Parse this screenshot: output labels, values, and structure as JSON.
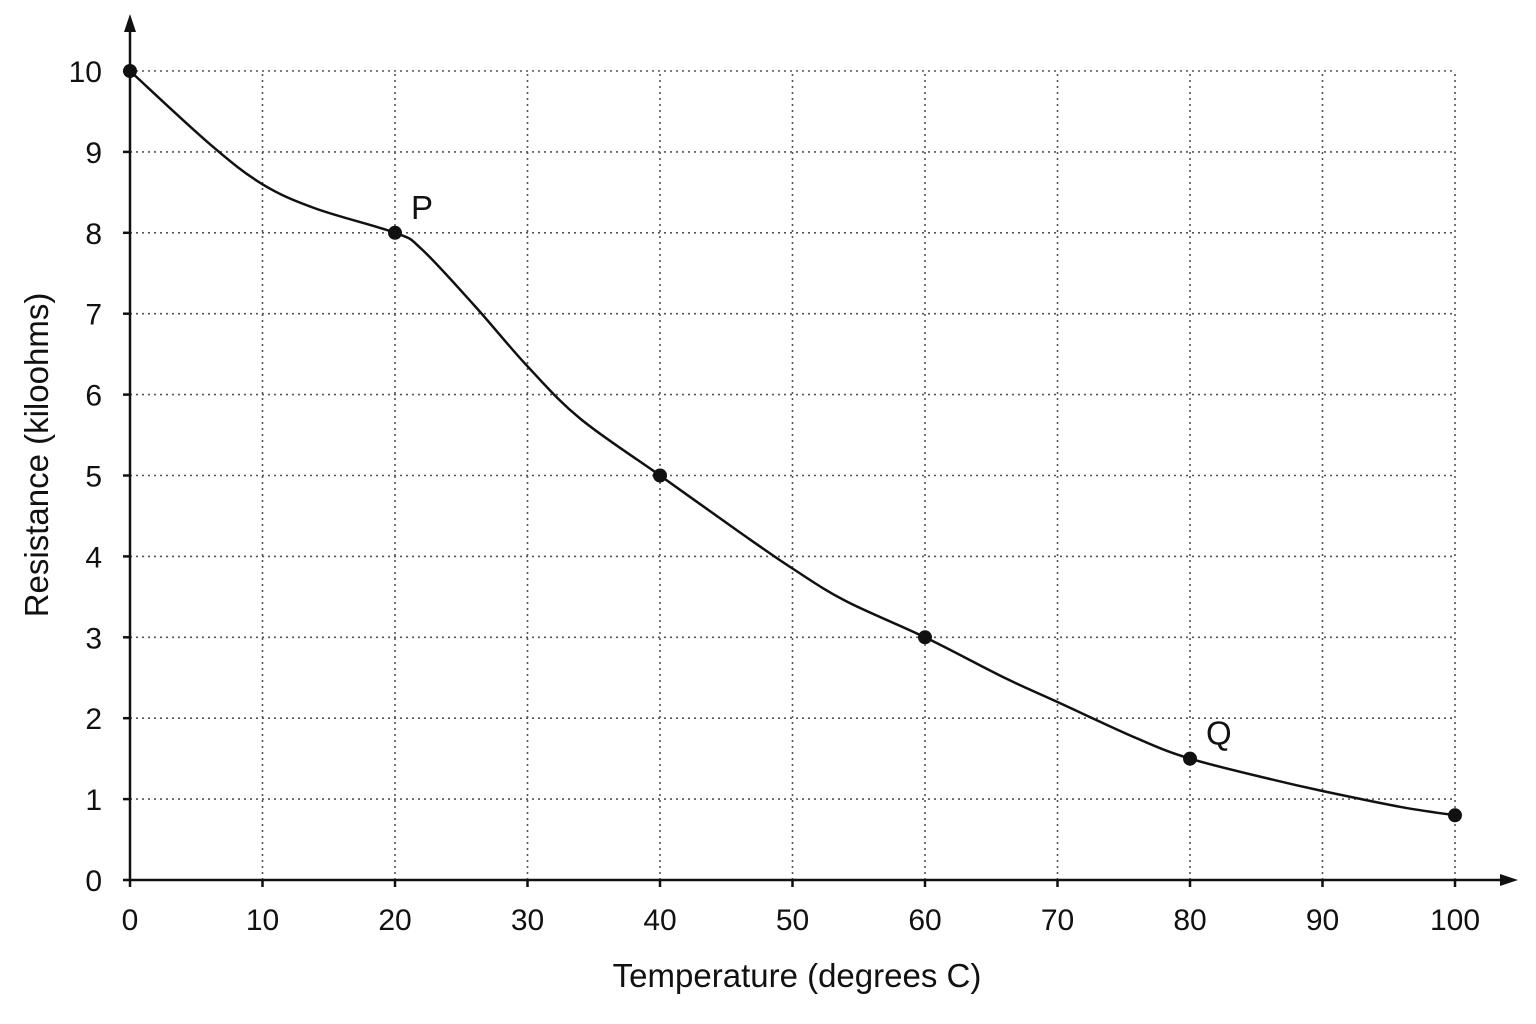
{
  "chart_data": {
    "type": "line",
    "title": "",
    "xlabel": "Temperature (degrees C)",
    "ylabel": "Resistance (kiloohms)",
    "xlim": [
      0,
      100
    ],
    "ylim": [
      0,
      10
    ],
    "x_ticks": [
      0,
      10,
      20,
      30,
      40,
      50,
      60,
      70,
      80,
      90,
      100
    ],
    "y_ticks": [
      0,
      1,
      2,
      3,
      4,
      5,
      6,
      7,
      8,
      9,
      10
    ],
    "grid": true,
    "series": [
      {
        "curve_x": [
          0,
          6,
          10,
          14,
          20,
          22,
          26,
          30,
          34,
          40,
          46,
          50,
          54,
          60,
          66,
          70,
          76,
          80,
          86,
          90,
          96,
          100
        ],
        "curve_y": [
          10,
          9.1,
          8.6,
          8.3,
          8,
          7.8,
          7.1,
          6.35,
          5.7,
          5,
          4.3,
          3.85,
          3.45,
          3,
          2.5,
          2.2,
          1.75,
          1.5,
          1.25,
          1.1,
          0.9,
          0.8
        ],
        "points": [
          {
            "x": 0,
            "y": 10,
            "label": ""
          },
          {
            "x": 20,
            "y": 8,
            "label": "P"
          },
          {
            "x": 40,
            "y": 5,
            "label": ""
          },
          {
            "x": 60,
            "y": 3,
            "label": ""
          },
          {
            "x": 80,
            "y": 1.5,
            "label": "Q"
          },
          {
            "x": 100,
            "y": 0.8,
            "label": ""
          }
        ]
      }
    ]
  }
}
